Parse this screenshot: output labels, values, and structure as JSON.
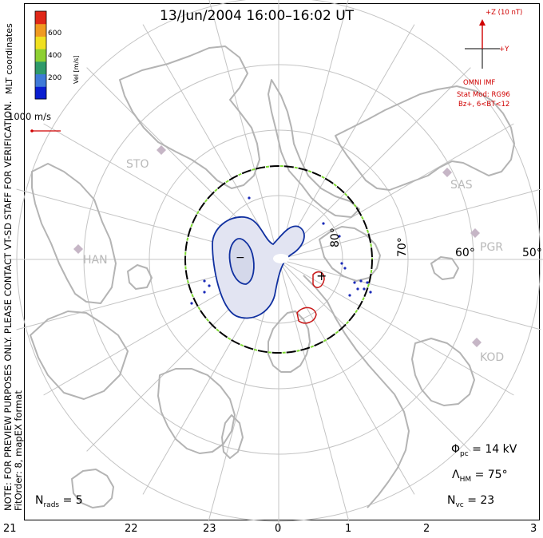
{
  "title": "13/Jun/2004 16:00–16:02 UT",
  "note_lines": [
    "NOTE: FOR PREVIEW PURPOSES ONLY. PLEASE CONTACT VT-SD STAFF FOR VERIFICATION.",
    "FitOrder: 8, mapEX format"
  ],
  "coord_label": "MLT coordinates",
  "colorbar": {
    "label": "Vel [m/s]",
    "ticks": [
      "600",
      "400",
      "200"
    ],
    "colors": [
      "#0a1ed0",
      "#3f7ad8",
      "#2f9a6a",
      "#8ed032",
      "#f0e020",
      "#f09a20",
      "#e02818"
    ]
  },
  "vector_scale": {
    "label": "1000 m/s",
    "color": "#d00000"
  },
  "imf": {
    "z_label": "+Z (10 nT)",
    "y_label": "+Y",
    "source": "OMNI IMF",
    "model_line1": "Stat Mod: RG96",
    "model_line2": "Bz+, 6<BT<12",
    "color": "#d00000"
  },
  "stations": [
    "STO",
    "HAN",
    "SAS",
    "PGR",
    "KOD"
  ],
  "latitude_labels": [
    "80°",
    "70°",
    "60°",
    "50°"
  ],
  "mlt_hours": [
    "21",
    "22",
    "23",
    "0",
    "1",
    "2",
    "3"
  ],
  "contour_labels": {
    "minus": "−",
    "plus": "+"
  },
  "stats": {
    "phi_symbol": "Φ",
    "phi_sub": "pc",
    "phi_value": "= 14 kV",
    "lambda_symbol": "Λ",
    "lambda_sub": "HM",
    "lambda_value": "= 75°",
    "nvc_symbol": "N",
    "nvc_sub": "vc",
    "nvc_value": "= 23",
    "nrads_symbol": "N",
    "nrads_sub": "rads",
    "nrads_value": "= 5"
  },
  "colors": {
    "grid": "#c4c4c4",
    "coast": "#b4b4b4",
    "hmb_outer": "#000000",
    "hmb_dash": "#7cd830",
    "negative_contour": "#1030a0",
    "negative_fill": "#e2e4f2",
    "positive_contour": "#c81818",
    "vectors": "#1a2ab8"
  }
}
